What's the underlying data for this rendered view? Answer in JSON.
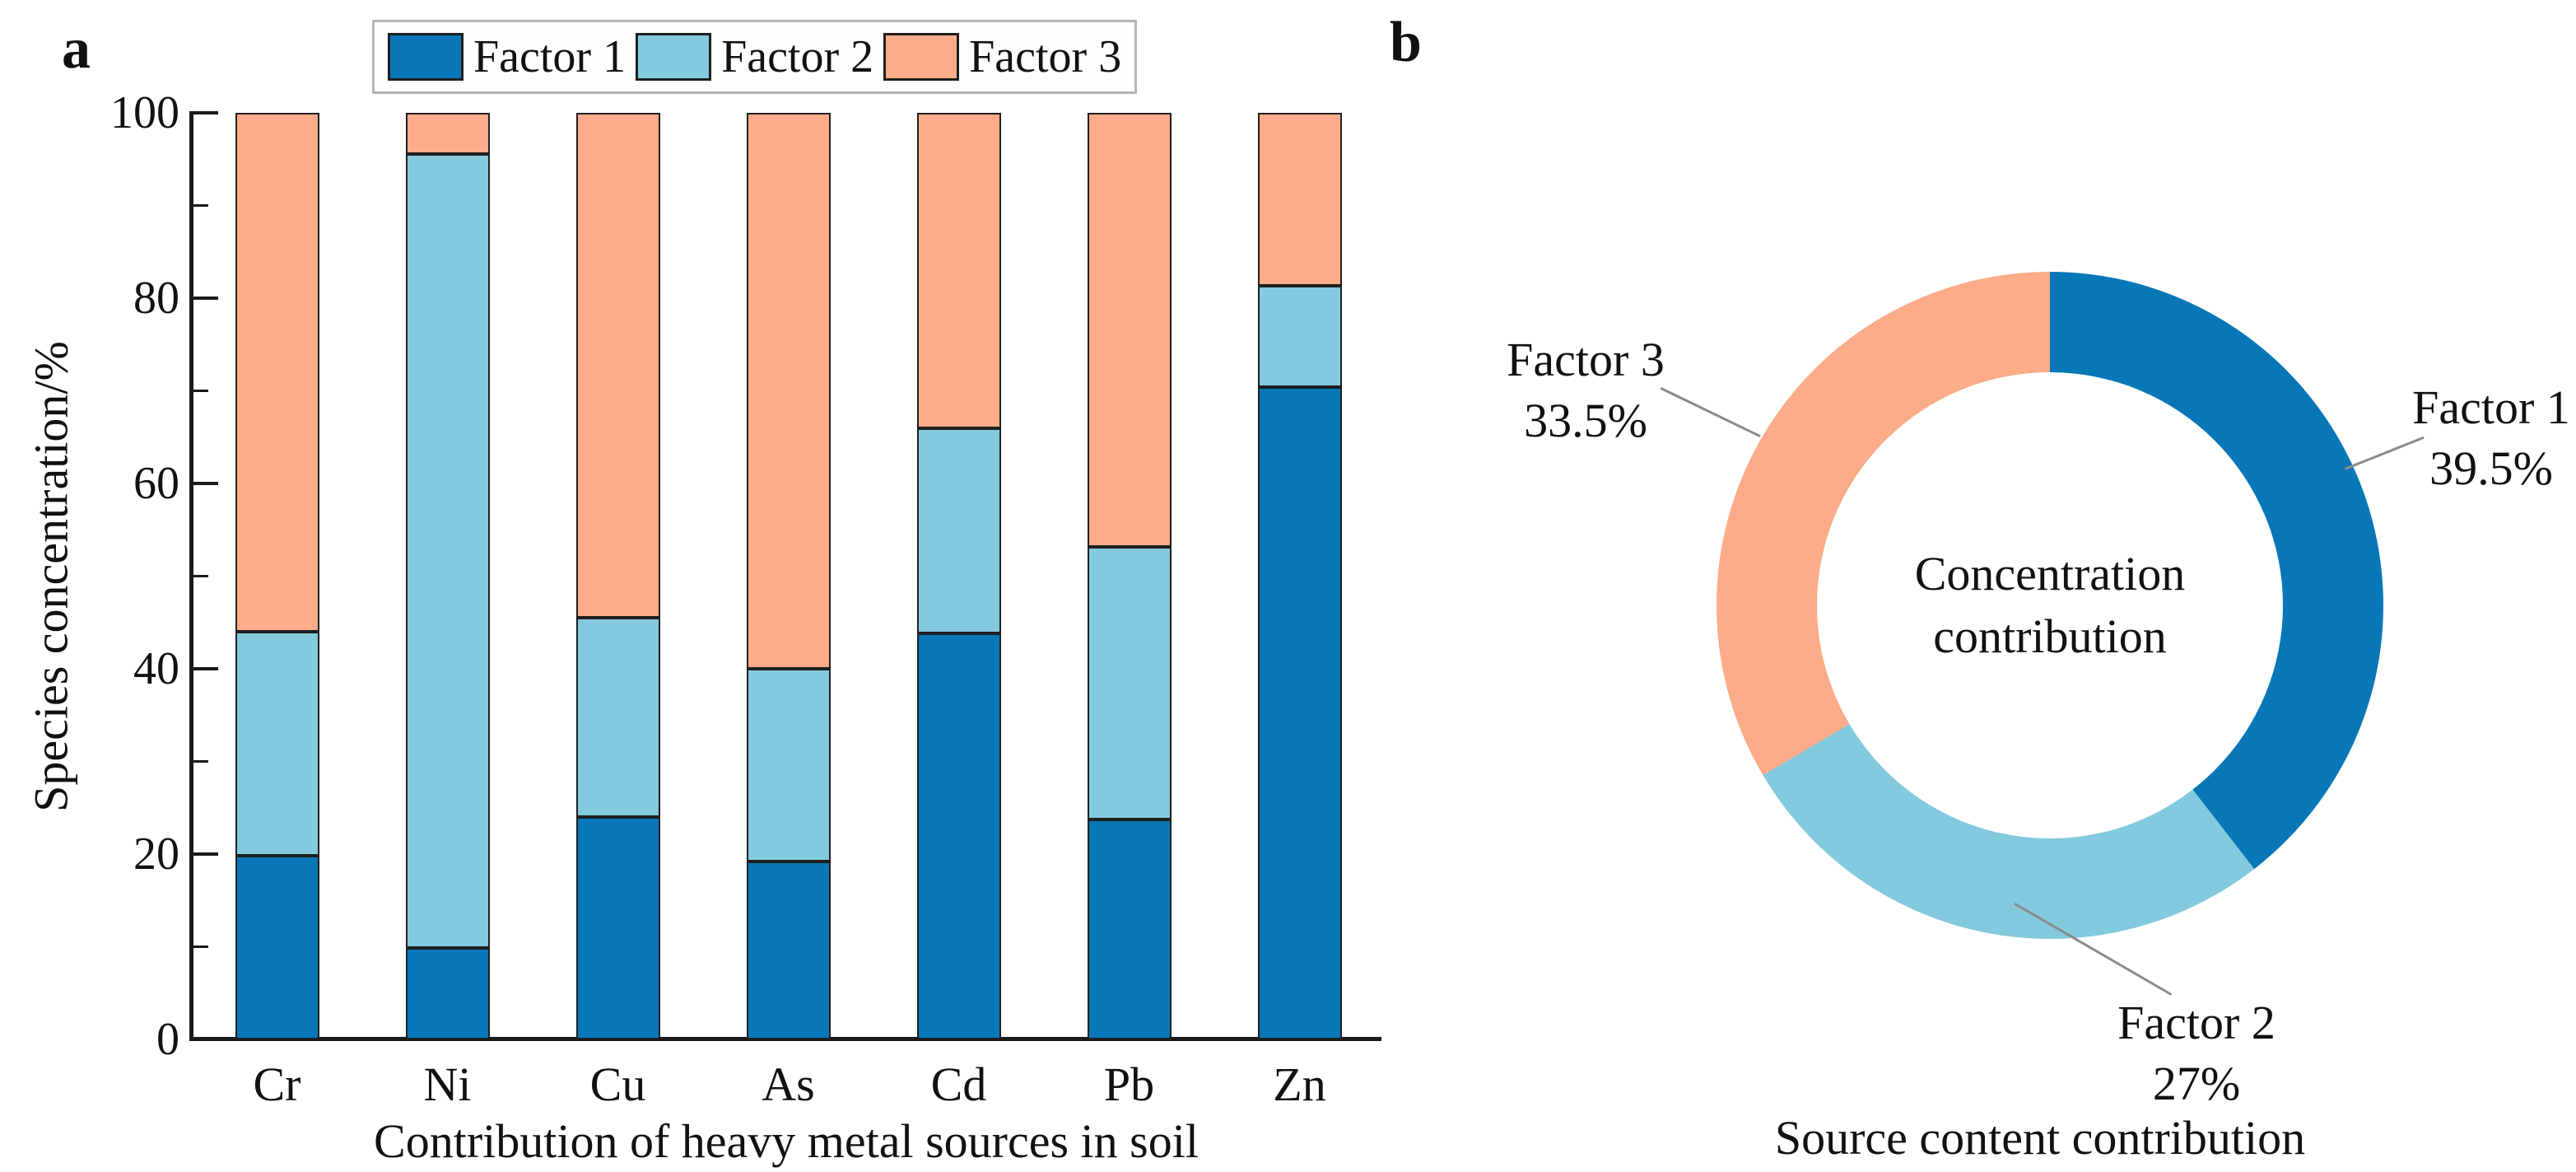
{
  "panel_a": {
    "label": "a"
  },
  "panel_b": {
    "label": "b"
  },
  "colors": {
    "factor1": "#0877b8",
    "factor2": "#84cade",
    "factor3": "#fcac89",
    "axis": "#1a1a1a",
    "segment_border": "#1f1f1f",
    "leader_line": "#8a8a8a",
    "legend_border": "#b5b5b5"
  },
  "chart_data": [
    {
      "type": "bar",
      "stacked": true,
      "categories": [
        "Cr",
        "Ni",
        "Cu",
        "As",
        "Cd",
        "Pb",
        "Zn"
      ],
      "series": [
        {
          "name": "Factor 1",
          "color": "#0877b8",
          "values": [
            19.8,
            9.9,
            24.0,
            19.2,
            43.8,
            23.7,
            70.4
          ]
        },
        {
          "name": "Factor 2",
          "color": "#84cade",
          "values": [
            24.2,
            85.7,
            21.5,
            20.8,
            22.2,
            29.5,
            10.9
          ]
        },
        {
          "name": "Factor 3",
          "color": "#fcac89",
          "values": [
            56.0,
            4.4,
            54.5,
            60.0,
            34.0,
            46.8,
            18.7
          ]
        }
      ],
      "xlabel": "Contribution of heavy metal sources in soil",
      "ylabel": "Species concentration/%",
      "ylim": [
        0,
        100
      ],
      "yticks": [
        0,
        20,
        40,
        60,
        80,
        100
      ],
      "minor_yticks": [
        10,
        30,
        50,
        70,
        90
      ],
      "grid": false,
      "legend_position": "top"
    },
    {
      "type": "pie",
      "donut": true,
      "start_angle": "top",
      "direction": "clockwise",
      "center_label_line1": "Concentration",
      "center_label_line2": "contribution",
      "caption": "Source content contribution",
      "slices": [
        {
          "name": "Factor 1",
          "value": 39.5,
          "pct_label": "39.5%",
          "color": "#0877b8"
        },
        {
          "name": "Factor 2",
          "value": 27,
          "pct_label": "27%",
          "color": "#84cade"
        },
        {
          "name": "Factor 3",
          "value": 33.5,
          "pct_label": "33.5%",
          "color": "#fcac89"
        }
      ]
    }
  ]
}
